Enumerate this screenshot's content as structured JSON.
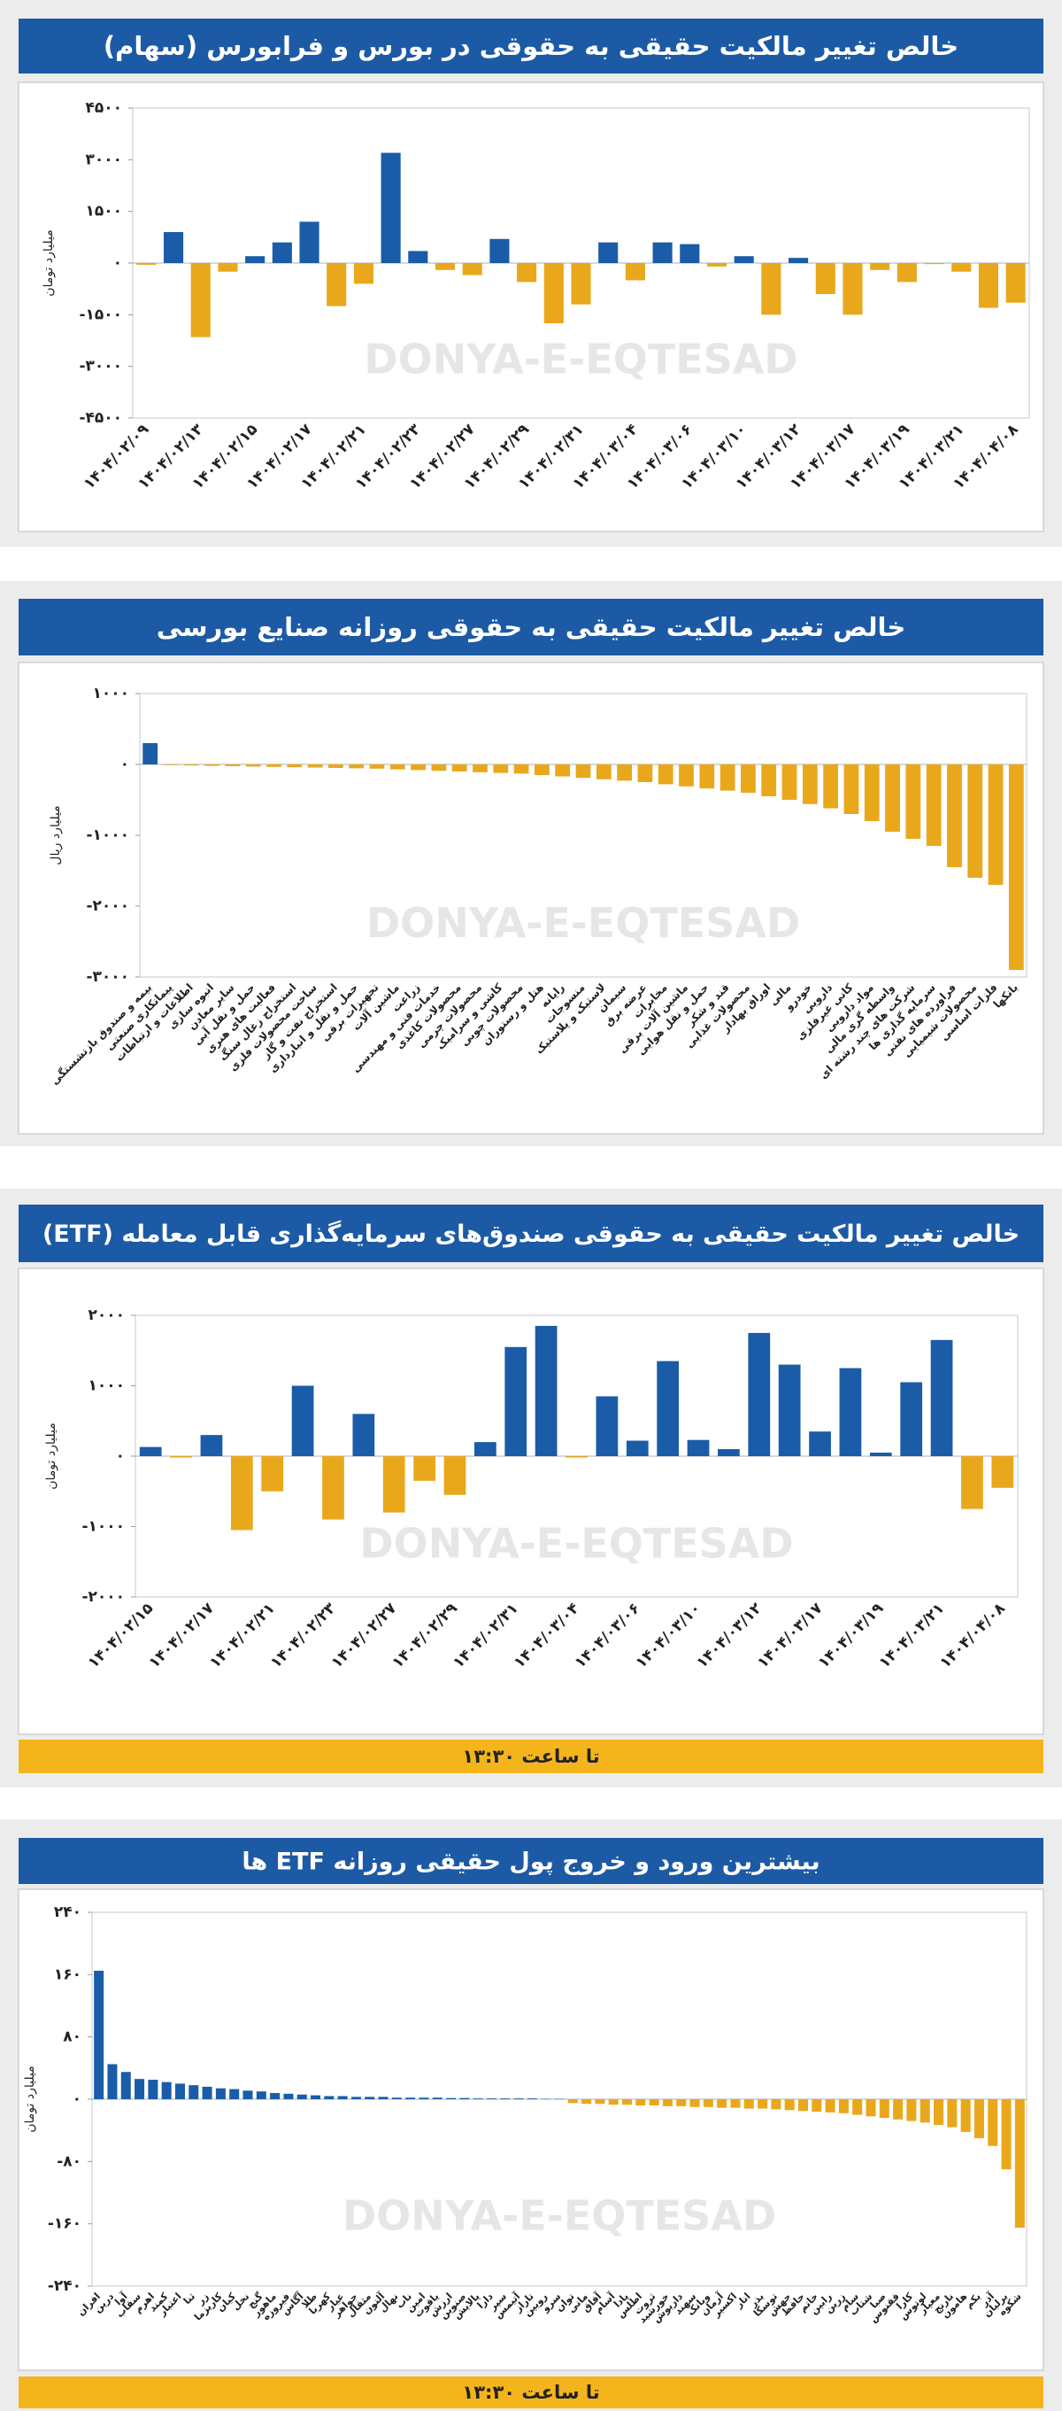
{
  "chart_data": [
    {
      "type": "bar",
      "title": "خالص تغییر مالکیت حقیقی به حقوقی در بورس و فرابورس (سهام)",
      "y_label": "میلیارد تومان",
      "watermark": "DONYA-E-EQTESAD",
      "categories": [
        "۱۴۰۴/۰۲/۰۹",
        null,
        "۱۴۰۴/۰۲/۱۳",
        null,
        "۱۴۰۴/۰۲/۱۵",
        null,
        "۱۴۰۴/۰۲/۱۷",
        null,
        "۱۴۰۴/۰۲/۲۱",
        null,
        "۱۴۰۴/۰۲/۲۳",
        null,
        "۱۴۰۴/۰۲/۲۷",
        null,
        "۱۴۰۴/۰۲/۲۹",
        null,
        "۱۴۰۴/۰۲/۳۱",
        null,
        "۱۴۰۴/۰۳/۰۴",
        null,
        "۱۴۰۴/۰۳/۰۶",
        null,
        "۱۴۰۴/۰۳/۱۰",
        null,
        "۱۴۰۴/۰۳/۱۲",
        null,
        "۱۴۰۴/۰۳/۱۷",
        null,
        "۱۴۰۴/۰۳/۱۹",
        null,
        "۱۴۰۴/۰۳/۲۱",
        null,
        "۱۴۰۴/۰۴/۰۸"
      ],
      "values": [
        -50,
        900,
        -2150,
        -250,
        200,
        600,
        1200,
        -1250,
        -600,
        3200,
        350,
        -200,
        -350,
        700,
        -550,
        -1750,
        -1200,
        600,
        -500,
        600,
        550,
        -100,
        200,
        -1500,
        150,
        -900,
        -1500,
        -200,
        -550,
        -30,
        -250,
        -1300,
        -1150
      ],
      "positive_color": "#1a5ca8",
      "negative_color": "#e9a81c",
      "ylim": [
        -4500,
        4500
      ],
      "yticks": [
        {
          "value": -4500,
          "label": "-۴۵۰۰"
        },
        {
          "value": -3000,
          "label": "-۳۰۰۰"
        },
        {
          "value": -1500,
          "label": "-۱۵۰۰"
        },
        {
          "value": 0,
          "label": "۰"
        },
        {
          "value": 1500,
          "label": "۱۵۰۰"
        },
        {
          "value": 3000,
          "label": "۳۰۰۰"
        },
        {
          "value": 4500,
          "label": "۴۵۰۰"
        }
      ]
    },
    {
      "type": "bar",
      "title": "خالص تغییر مالکیت حقیقی به حقوقی روزانه صنایع بورسی",
      "y_label": "میلیارد ریال",
      "watermark": "DONYA-E-EQTESAD",
      "categories": [
        "بیمه و صندوق بازنشستگی",
        "پیمانکاری صنعتی",
        "اطلاعات و ارتباطات",
        "انبوه سازی",
        "سایر معادن",
        "حمل و نقل آبی",
        "فعالیت های هنری",
        "استخراج زغال سنگ",
        "ساخت محصولات فلزی",
        "استخراج نفت و گاز",
        "حمل و نقل و انبارداری",
        "تجهیزات برقی",
        "ماشین آلات",
        "زراعت",
        "خدمات فنی و مهندسی",
        "محصولات کاغذی",
        "محصولات چرمی",
        "کاشی و سرامیک",
        "محصولات چوبی",
        "هتل و رستوران",
        "رایانه",
        "منسوجات",
        "لاستیک و پلاستیک",
        "سیمان",
        "عرضه برق",
        "مخابرات",
        "ماشین آلات برقی",
        "حمل و نقل هوایی",
        "قند و شکر",
        "محصولات غذایی",
        "اوراق بهادار",
        "مالی",
        "خودرو",
        "دارویی",
        "کانی غیرفلزی",
        "مواد دارویی",
        "واسطه گری مالی",
        "شرکت های چند رشته ای",
        "سرمایه گذاری ها",
        "فراورده های نفتی",
        "محصولات شیمیایی",
        "فلزات اساسی",
        "بانکها"
      ],
      "values": [
        300,
        -10,
        -15,
        -20,
        -25,
        -30,
        -35,
        -40,
        -45,
        -50,
        -55,
        -60,
        -70,
        -80,
        -90,
        -100,
        -110,
        -120,
        -130,
        -150,
        -170,
        -190,
        -210,
        -230,
        -250,
        -280,
        -310,
        -340,
        -370,
        -400,
        -450,
        -500,
        -560,
        -620,
        -700,
        -800,
        -950,
        -1050,
        -1150,
        -1450,
        -1600,
        -1700,
        -2900
      ],
      "positive_color": "#1a5ca8",
      "negative_color": "#e9a81c",
      "ylim": [
        -3000,
        1000
      ],
      "yticks": [
        {
          "value": -3000,
          "label": "-۳۰۰۰"
        },
        {
          "value": -2000,
          "label": "-۲۰۰۰"
        },
        {
          "value": -1000,
          "label": "-۱۰۰۰"
        },
        {
          "value": 0,
          "label": "۰"
        },
        {
          "value": 1000,
          "label": "۱۰۰۰"
        }
      ]
    },
    {
      "type": "bar",
      "title": "خالص تغییر مالکیت حقیقی به حقوقی صندوق‌های سرمایه‌گذاری قابل معامله (ETF)",
      "y_label": "میلیارد تومان",
      "watermark": "DONYA-E-EQTESAD",
      "footer": "تا ساعت ۱۳:۳۰",
      "categories": [
        "۱۴۰۴/۰۲/۱۵",
        null,
        "۱۴۰۴/۰۲/۱۷",
        null,
        "۱۴۰۴/۰۲/۲۱",
        null,
        "۱۴۰۴/۰۲/۲۳",
        null,
        "۱۴۰۴/۰۲/۲۷",
        null,
        "۱۴۰۴/۰۲/۲۹",
        null,
        "۱۴۰۴/۰۲/۳۱",
        null,
        "۱۴۰۴/۰۳/۰۴",
        null,
        "۱۴۰۴/۰۳/۰۶",
        null,
        "۱۴۰۴/۰۳/۱۰",
        null,
        "۱۴۰۴/۰۳/۱۲",
        null,
        "۱۴۰۴/۰۳/۱۷",
        null,
        "۱۴۰۴/۰۳/۱۹",
        null,
        "۱۴۰۴/۰۳/۲۱",
        null,
        "۱۴۰۴/۰۴/۰۸"
      ],
      "values": [
        130,
        -20,
        300,
        -1050,
        -500,
        1000,
        -900,
        600,
        -800,
        -350,
        -550,
        200,
        1550,
        1850,
        -20,
        850,
        220,
        1350,
        230,
        100,
        1750,
        1300,
        350,
        1250,
        50,
        1050,
        1650,
        -750,
        -450
      ],
      "positive_color": "#1a5ca8",
      "negative_color": "#e9a81c",
      "ylim": [
        -2000,
        2000
      ],
      "yticks": [
        {
          "value": -2000,
          "label": "-۲۰۰۰"
        },
        {
          "value": -1000,
          "label": "-۱۰۰۰"
        },
        {
          "value": 0,
          "label": "۰"
        },
        {
          "value": 1000,
          "label": "۱۰۰۰"
        },
        {
          "value": 2000,
          "label": "۲۰۰۰"
        }
      ]
    },
    {
      "type": "bar",
      "title": "بیشترین ورود و خروج پول حقیقی روزانه ETF ها",
      "y_label": "میلیارد تومان",
      "watermark": "DONYA-E-EQTESAD",
      "footer": "تا ساعت ۱۳:۳۰",
      "categories": [
        "افران",
        "درین",
        "آوا",
        "سقاب",
        "اهرم",
        "کمند",
        "اعتبار",
        "ثنا",
        "زر",
        "کاریزما",
        "کیان",
        "نخل",
        "گنج",
        "ماهور",
        "فیروزه",
        "آگاس",
        "طلا",
        "کهربا",
        "عیار",
        "جواهر",
        "مثقال",
        "آلتون",
        "نهال",
        "ناب",
        "امین",
        "یاقوت",
        "ارزش",
        "صنوین",
        "پالایش",
        "دارا",
        "سپر",
        "آتیمس",
        "تاراز",
        "رویین",
        "سرو",
        "توان",
        "مانی",
        "آفاق",
        "آسام",
        "پادا",
        "اطلس",
        "ثروت",
        "خورشید",
        "داریوش",
        "سهند",
        "وبانک",
        "آرمان",
        "اکسیر",
        "انار",
        "بذر",
        "توسکا",
        "جهش",
        "حافظ",
        "خاتم",
        "رابین",
        "زرین",
        "سام",
        "شتاب",
        "صبا",
        "ققنوس",
        "کارا",
        "لوتوس",
        "معیار",
        "نارنج",
        "هامون",
        "یکم",
        "آذر",
        "برلیان",
        "شکوه"
      ],
      "values": [
        165,
        45,
        35,
        26,
        25,
        22,
        20,
        18,
        16,
        14,
        13,
        11,
        10,
        8,
        7,
        6,
        5,
        4,
        4,
        3,
        3,
        3,
        2,
        2,
        2,
        2,
        1.5,
        1.5,
        1,
        1,
        1,
        1,
        1,
        0.5,
        0.5,
        -5,
        -6,
        -6,
        -7,
        -7,
        -8,
        -8,
        -9,
        -9,
        -10,
        -10,
        -11,
        -11,
        -12,
        -12,
        -13,
        -14,
        -15,
        -16,
        -17,
        -18,
        -20,
        -22,
        -24,
        -26,
        -28,
        -30,
        -33,
        -36,
        -42,
        -50,
        -60,
        -90,
        -165
      ],
      "positive_color": "#1a5ca8",
      "negative_color": "#e9a81c",
      "ylim": [
        -240,
        240
      ],
      "yticks": [
        {
          "value": -240,
          "label": "-۲۴۰"
        },
        {
          "value": -160,
          "label": "-۱۶۰"
        },
        {
          "value": -80,
          "label": "-۸۰"
        },
        {
          "value": 0,
          "label": "۰"
        },
        {
          "value": 80,
          "label": "۸۰"
        },
        {
          "value": 160,
          "label": "۱۶۰"
        },
        {
          "value": 240,
          "label": "۲۴۰"
        }
      ]
    }
  ]
}
